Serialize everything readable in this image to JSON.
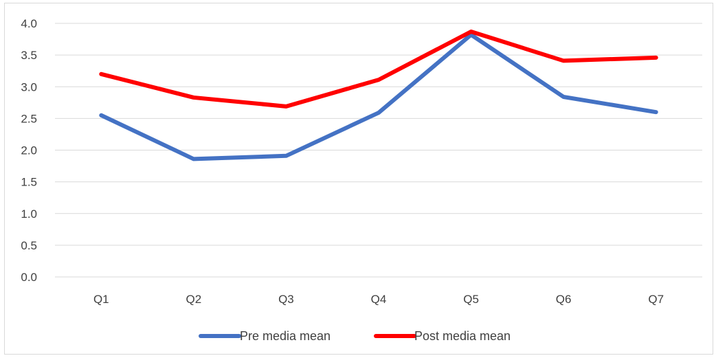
{
  "chart_data": {
    "type": "line",
    "title": "",
    "xlabel": "",
    "ylabel": "",
    "categories": [
      "Q1",
      "Q2",
      "Q3",
      "Q4",
      "Q5",
      "Q6",
      "Q7"
    ],
    "ylim": [
      0,
      4
    ],
    "yticks": [
      "0.0",
      "0.5",
      "1.0",
      "1.5",
      "2.0",
      "2.5",
      "3.0",
      "3.5",
      "4.0"
    ],
    "grid": true,
    "legend_position": "bottom",
    "series": [
      {
        "name": "Pre media mean",
        "color": "#4472c4",
        "values": [
          2.55,
          1.86,
          1.91,
          2.59,
          3.82,
          2.84,
          2.6
        ]
      },
      {
        "name": "Post media mean",
        "color": "#ff0000",
        "values": [
          3.2,
          2.83,
          2.69,
          3.11,
          3.87,
          3.41,
          3.46
        ]
      }
    ]
  }
}
